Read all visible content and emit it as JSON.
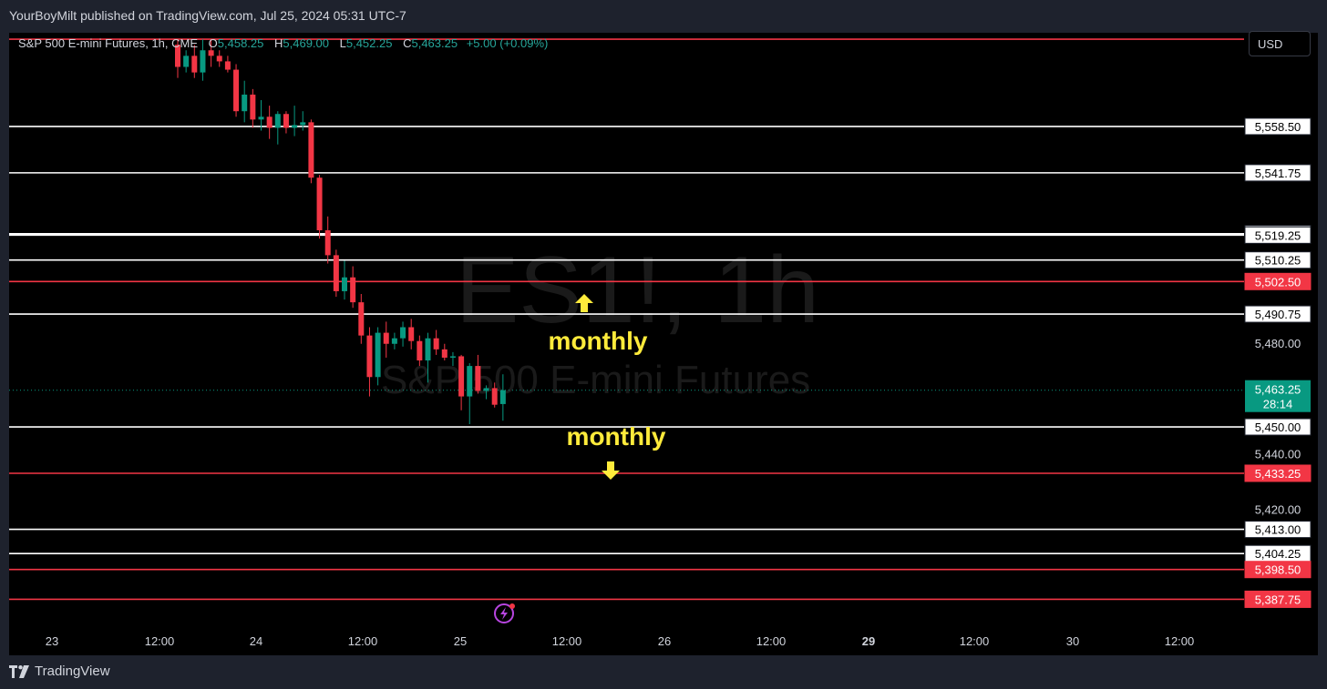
{
  "header": {
    "published": "YourBoyMilt published on TradingView.com, Jul 25, 2024 05:31 UTC-7"
  },
  "legend": {
    "symbol": "S&P 500 E-mini Futures, 1h, CME",
    "o_label": "O",
    "o_value": "5,458.25",
    "h_label": "H",
    "h_value": "5,469.00",
    "l_label": "L",
    "l_value": "5,452.25",
    "c_label": "C",
    "c_value": "5,463.25",
    "change": "+5.00 (+0.09%)"
  },
  "currency_button": "USD",
  "watermark": {
    "ticker": "ES1!, 1h",
    "name": "S&P 500 E-mini Futures"
  },
  "footer": {
    "brand": "TradingView"
  },
  "colors": {
    "up": "#089981",
    "down": "#f23645",
    "white_level": "#ffffff",
    "red_level": "#f23645",
    "annotation": "#ffeb3b",
    "current_price_tag": "#089981"
  },
  "chart_data": {
    "type": "candlestick",
    "symbol": "ES1!",
    "interval": "1h",
    "ylim": [
      5380,
      5592
    ],
    "y_axis_ticks": [
      5420.0,
      5440.0,
      5480.0
    ],
    "x_axis_ticks": [
      "23",
      "12:00",
      "24",
      "12:00",
      "25",
      "12:00",
      "26",
      "12:00",
      "29",
      "12:00",
      "30",
      "12:00"
    ],
    "current_price": {
      "value": 5463.25,
      "label": "5,463.25",
      "countdown": "28:14"
    },
    "horizontal_levels": [
      {
        "value": 5590.0,
        "color": "red"
      },
      {
        "value": 5558.5,
        "label": "5,558.50",
        "color": "white"
      },
      {
        "value": 5541.75,
        "label": "5,541.75",
        "color": "white"
      },
      {
        "value": 5519.75,
        "label": "5,519.75",
        "color": "white"
      },
      {
        "value": 5519.25,
        "label": "5,519.25",
        "color": "white"
      },
      {
        "value": 5510.25,
        "label": "5,510.25",
        "color": "white"
      },
      {
        "value": 5502.5,
        "label": "5,502.50",
        "color": "red"
      },
      {
        "value": 5490.75,
        "label": "5,490.75",
        "color": "white"
      },
      {
        "value": 5450.0,
        "label": "5,450.00",
        "color": "white"
      },
      {
        "value": 5433.25,
        "label": "5,433.25",
        "color": "red"
      },
      {
        "value": 5413.0,
        "label": "5,413.00",
        "color": "white"
      },
      {
        "value": 5404.25,
        "label": "5,404.25",
        "color": "white"
      },
      {
        "value": 5398.5,
        "label": "5,398.50",
        "color": "red"
      },
      {
        "value": 5387.75,
        "label": "5,387.75",
        "color": "red"
      }
    ],
    "annotations": [
      {
        "text": "monthly",
        "arrow": "up"
      },
      {
        "text": "monthly",
        "arrow": "down"
      }
    ],
    "candles": [
      {
        "o": 5588.0,
        "h": 5590.0,
        "l": 5576.0,
        "c": 5580.0
      },
      {
        "o": 5580.0,
        "h": 5586.0,
        "l": 5578.0,
        "c": 5584.0
      },
      {
        "o": 5584.0,
        "h": 5588.0,
        "l": 5576.0,
        "c": 5578.0
      },
      {
        "o": 5578.0,
        "h": 5590.0,
        "l": 5575.0,
        "c": 5586.0
      },
      {
        "o": 5586.0,
        "h": 5590.0,
        "l": 5580.0,
        "c": 5584.0
      },
      {
        "o": 5584.0,
        "h": 5586.0,
        "l": 5580.0,
        "c": 5582.0
      },
      {
        "o": 5582.0,
        "h": 5584.0,
        "l": 5578.0,
        "c": 5579.0
      },
      {
        "o": 5579.0,
        "h": 5581.0,
        "l": 5562.0,
        "c": 5564.0
      },
      {
        "o": 5564.0,
        "h": 5575.0,
        "l": 5560.0,
        "c": 5570.0
      },
      {
        "o": 5570.0,
        "h": 5572.0,
        "l": 5558.0,
        "c": 5561.0
      },
      {
        "o": 5561.0,
        "h": 5568.0,
        "l": 5557.0,
        "c": 5562.0
      },
      {
        "o": 5562.0,
        "h": 5566.0,
        "l": 5554.0,
        "c": 5558.0
      },
      {
        "o": 5558.0,
        "h": 5564.0,
        "l": 5552.0,
        "c": 5563.0
      },
      {
        "o": 5563.0,
        "h": 5564.0,
        "l": 5556.0,
        "c": 5558.0
      },
      {
        "o": 5558.0,
        "h": 5566.0,
        "l": 5555.0,
        "c": 5559.0
      },
      {
        "o": 5559.0,
        "h": 5564.0,
        "l": 5557.0,
        "c": 5560.0
      },
      {
        "o": 5560.0,
        "h": 5561.0,
        "l": 5538.0,
        "c": 5540.0
      },
      {
        "o": 5540.0,
        "h": 5541.0,
        "l": 5518.0,
        "c": 5521.0
      },
      {
        "o": 5521.0,
        "h": 5526.0,
        "l": 5509.0,
        "c": 5512.0
      },
      {
        "o": 5512.0,
        "h": 5514.0,
        "l": 5497.0,
        "c": 5499.0
      },
      {
        "o": 5499.0,
        "h": 5510.0,
        "l": 5496.0,
        "c": 5504.0
      },
      {
        "o": 5504.0,
        "h": 5508.0,
        "l": 5493.0,
        "c": 5495.0
      },
      {
        "o": 5495.0,
        "h": 5498.0,
        "l": 5480.0,
        "c": 5483.0
      },
      {
        "o": 5483.0,
        "h": 5486.0,
        "l": 5461.0,
        "c": 5468.0
      },
      {
        "o": 5468.0,
        "h": 5486.0,
        "l": 5465.0,
        "c": 5484.0
      },
      {
        "o": 5484.0,
        "h": 5488.0,
        "l": 5475.0,
        "c": 5480.0
      },
      {
        "o": 5480.0,
        "h": 5484.0,
        "l": 5478.0,
        "c": 5482.0
      },
      {
        "o": 5482.0,
        "h": 5488.0,
        "l": 5479.0,
        "c": 5486.0
      },
      {
        "o": 5486.0,
        "h": 5489.0,
        "l": 5478.0,
        "c": 5481.0
      },
      {
        "o": 5481.0,
        "h": 5483.0,
        "l": 5472.0,
        "c": 5474.0
      },
      {
        "o": 5474.0,
        "h": 5484.0,
        "l": 5466.0,
        "c": 5482.0
      },
      {
        "o": 5482.0,
        "h": 5485.0,
        "l": 5476.0,
        "c": 5478.0
      },
      {
        "o": 5478.0,
        "h": 5480.0,
        "l": 5474.0,
        "c": 5475.0
      },
      {
        "o": 5475.0,
        "h": 5477.0,
        "l": 5472.0,
        "c": 5475.5
      },
      {
        "o": 5475.5,
        "h": 5476.0,
        "l": 5456.0,
        "c": 5461.0
      },
      {
        "o": 5461.0,
        "h": 5473.0,
        "l": 5451.0,
        "c": 5472.0
      },
      {
        "o": 5472.0,
        "h": 5476.0,
        "l": 5462.0,
        "c": 5463.0
      },
      {
        "o": 5463.0,
        "h": 5465.0,
        "l": 5460.0,
        "c": 5464.0
      },
      {
        "o": 5464.0,
        "h": 5466.0,
        "l": 5457.0,
        "c": 5458.0
      },
      {
        "o": 5458.25,
        "h": 5469.0,
        "l": 5452.25,
        "c": 5463.25
      }
    ]
  }
}
